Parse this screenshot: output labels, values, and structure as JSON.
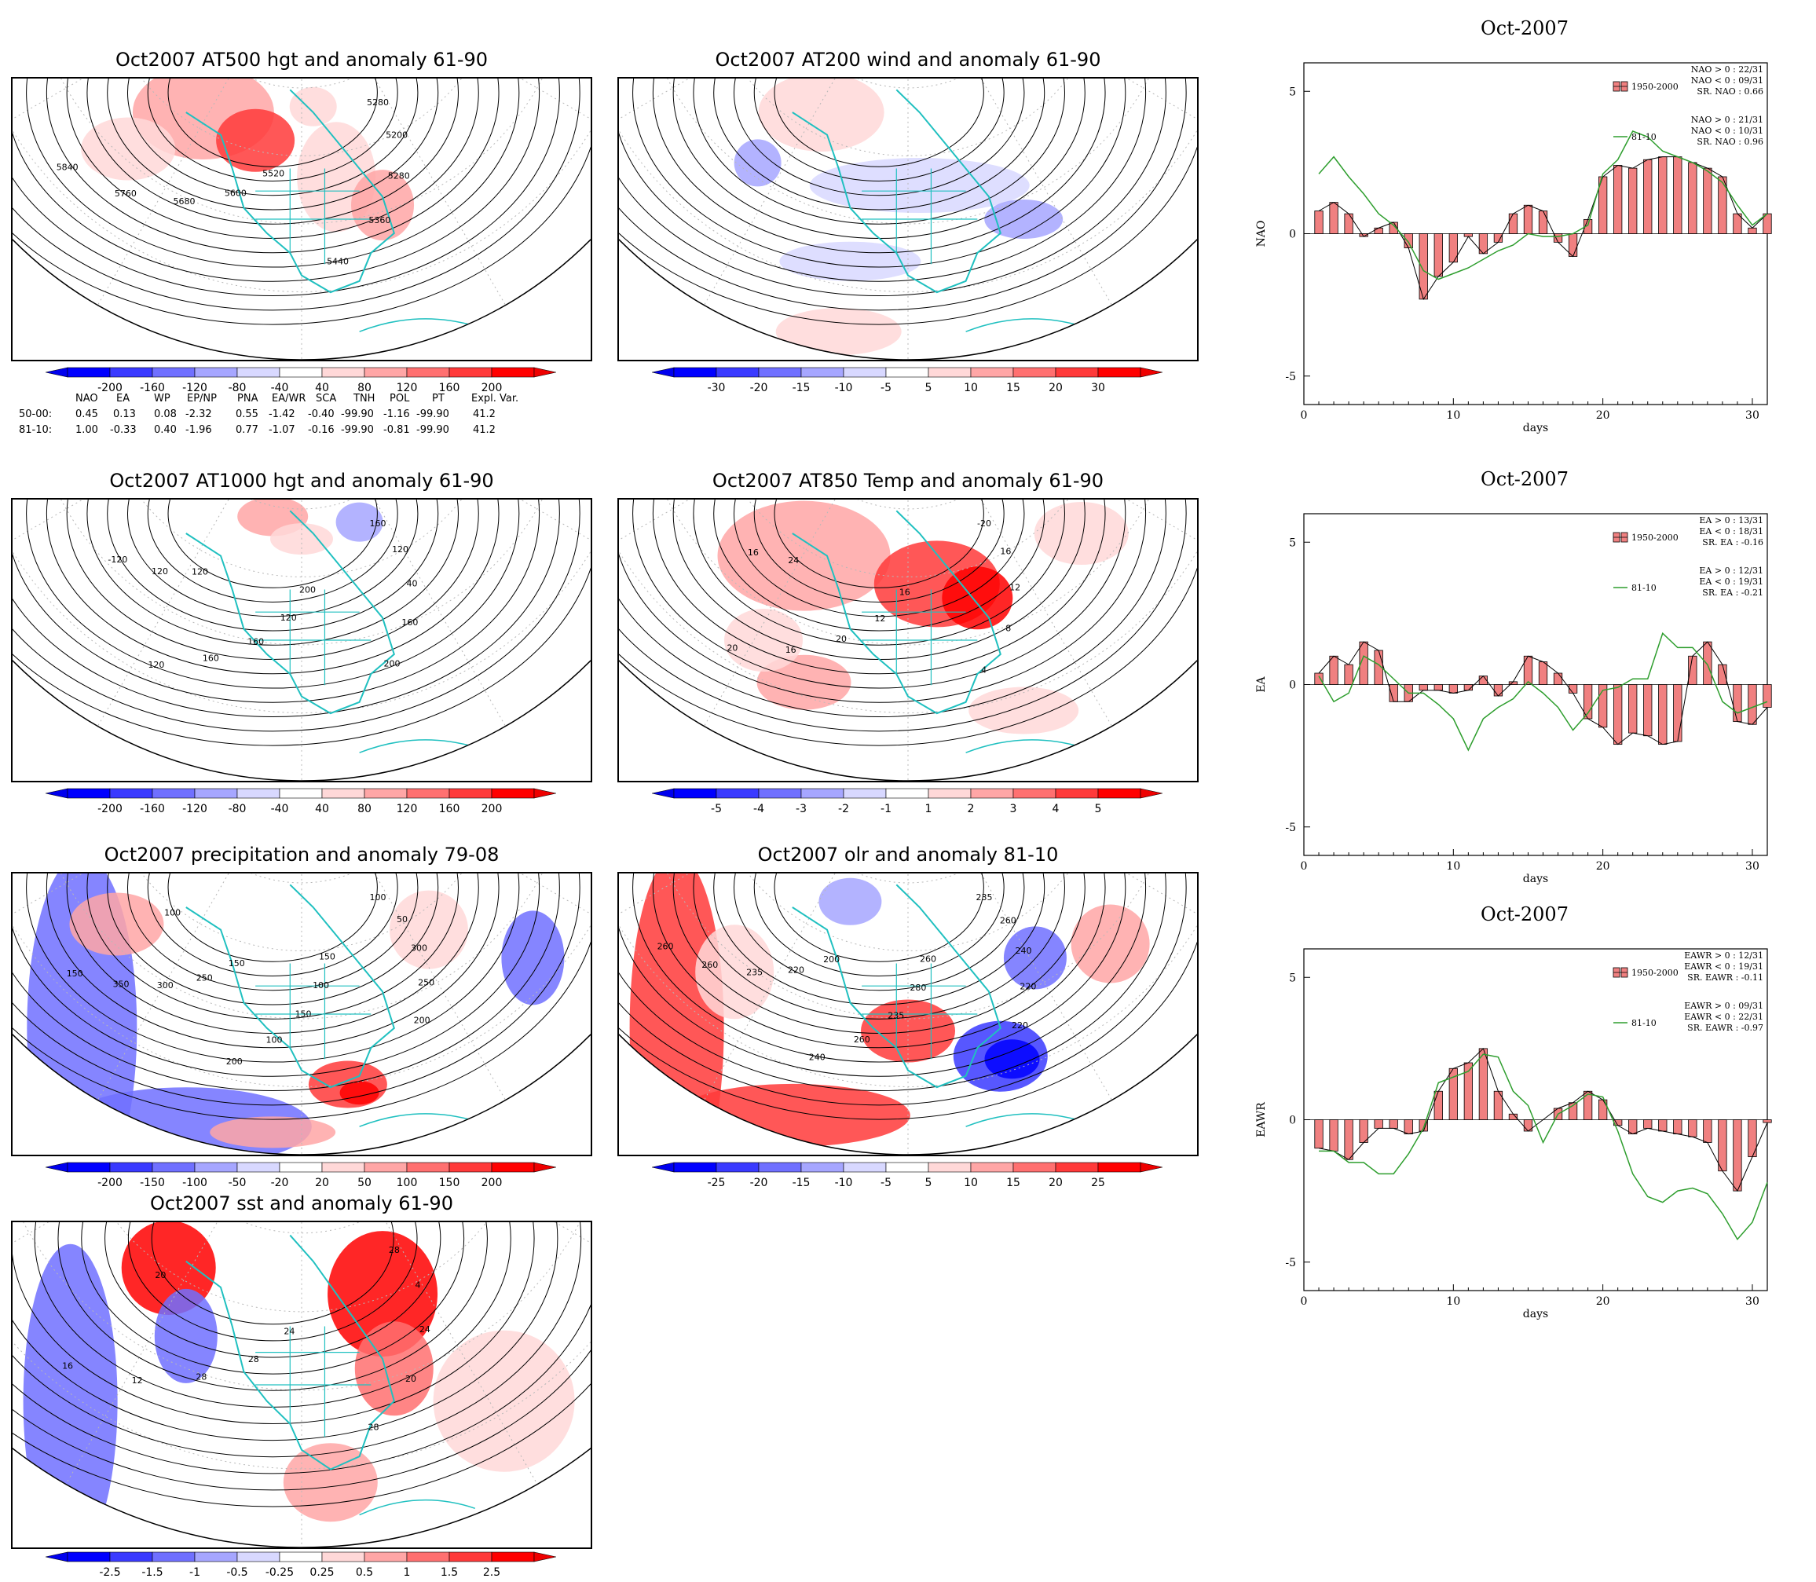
{
  "maps": [
    {
      "id": "at500",
      "title": "Oct2007 AT500 hgt and anomaly 61-90",
      "contour_labels": [
        "5280",
        "5200",
        "5280",
        "5360",
        "5440",
        "5520",
        "5600",
        "5680",
        "5760",
        "5840"
      ],
      "colorbar": {
        "ticks": [
          "-200",
          "-160",
          "-120",
          "-80",
          "-40",
          "40",
          "80",
          "120",
          "160",
          "200"
        ]
      }
    },
    {
      "id": "at200",
      "title": "Oct2007 AT200 wind and anomaly 61-90",
      "contour_labels": [],
      "colorbar": {
        "ticks": [
          "-30",
          "-20",
          "-15",
          "-10",
          "-5",
          "5",
          "10",
          "15",
          "20",
          "30"
        ]
      }
    },
    {
      "id": "at1000",
      "title": "Oct2007 AT1000 hgt and anomaly 61-90",
      "contour_labels": [
        "160",
        "120",
        "40",
        "160",
        "200",
        "200",
        "120",
        "160",
        "160",
        "120",
        "120",
        "120",
        "-120"
      ],
      "colorbar": {
        "ticks": [
          "-200",
          "-160",
          "-120",
          "-80",
          "-40",
          "40",
          "80",
          "120",
          "160",
          "200"
        ]
      }
    },
    {
      "id": "at850",
      "title": "Oct2007 AT850 Temp and anomaly 61-90",
      "contour_labels": [
        "-20",
        "16",
        "12",
        "8",
        "4",
        "16",
        "12",
        "20",
        "16",
        "20",
        "24",
        "16"
      ],
      "colorbar": {
        "ticks": [
          "-5",
          "-4",
          "-3",
          "-2",
          "-1",
          "1",
          "2",
          "3",
          "4",
          "5"
        ]
      }
    },
    {
      "id": "precip",
      "title": "Oct2007 precipitation and anomaly 79-08",
      "contour_labels": [
        "100",
        "50",
        "300",
        "250",
        "200",
        "150",
        "100",
        "150",
        "100",
        "200",
        "150",
        "250",
        "300",
        "350",
        "150",
        "100"
      ],
      "colorbar": {
        "ticks": [
          "-200",
          "-150",
          "-100",
          "-50",
          "-20",
          "20",
          "50",
          "100",
          "150",
          "200"
        ]
      }
    },
    {
      "id": "olr",
      "title": "Oct2007 olr and anomaly 81-10",
      "contour_labels": [
        "235",
        "260",
        "240",
        "220",
        "220",
        "260",
        "280",
        "235",
        "260",
        "240",
        "200",
        "220",
        "235",
        "260",
        "260"
      ],
      "colorbar": {
        "ticks": [
          "-25",
          "-20",
          "-15",
          "-10",
          "-5",
          "5",
          "10",
          "15",
          "20",
          "25"
        ]
      }
    },
    {
      "id": "sst",
      "title": "Oct2007 sst and anomaly 61-90",
      "contour_labels": [
        "28",
        "4",
        "24",
        "20",
        "28",
        "24",
        "28",
        "28",
        "12",
        "16",
        "20"
      ],
      "colorbar": {
        "ticks": [
          "-2.5",
          "-1.5",
          "-1",
          "-0.5",
          "-0.25",
          "0.25",
          "0.5",
          "1",
          "1.5",
          "2.5"
        ]
      }
    }
  ],
  "teleconnection_table": {
    "headers": [
      "NAO",
      "EA",
      "WP",
      "EP/NP",
      "PNA",
      "EA/WR",
      "SCA",
      "TNH",
      "POL",
      "PT",
      "Expl. Var."
    ],
    "rows": [
      {
        "label": "50-00:",
        "values": [
          "0.45",
          "0.13",
          "0.08",
          "-2.32",
          "0.55",
          "-1.42",
          "-0.40",
          "-99.90",
          "-1.16",
          "-99.90",
          "41.2"
        ]
      },
      {
        "label": "81-10:",
        "values": [
          "1.00",
          "-0.33",
          "0.40",
          "-1.96",
          "0.77",
          "-1.07",
          "-0.16",
          "-99.90",
          "-0.81",
          "-99.90",
          "41.2"
        ]
      }
    ]
  },
  "colors": {
    "blue_scale": [
      "#0000ff",
      "#3a3aff",
      "#7070ff",
      "#a6a6ff",
      "#d8d8ff"
    ],
    "red_scale": [
      "#ffd8d8",
      "#ffa6a6",
      "#ff7070",
      "#ff3a3a",
      "#ff0000"
    ],
    "coast": "#20c0c0",
    "bar_fill": "#f08080",
    "line_green": "#2e9e2e"
  },
  "chart_data": [
    {
      "type": "bar",
      "title": "Oct-2007",
      "ylabel": "NAO",
      "xlabel": "days",
      "xlim": [
        0,
        31
      ],
      "ylim": [
        -6,
        6
      ],
      "xticks": [
        "0",
        "10",
        "20",
        "30"
      ],
      "yticks": [
        "5",
        "0",
        "-5"
      ],
      "x": [
        1,
        2,
        3,
        4,
        5,
        6,
        7,
        8,
        9,
        10,
        11,
        12,
        13,
        14,
        15,
        16,
        17,
        18,
        19,
        20,
        21,
        22,
        23,
        24,
        25,
        26,
        27,
        28,
        29,
        30,
        31
      ],
      "series": [
        {
          "name": "1950-2000",
          "kind": "bar",
          "values": [
            0.8,
            1.1,
            0.7,
            -0.1,
            0.2,
            0.4,
            -0.5,
            -2.3,
            -1.5,
            -1.0,
            -0.1,
            -0.7,
            -0.3,
            0.7,
            1.0,
            0.8,
            -0.3,
            -0.8,
            0.5,
            2.0,
            2.4,
            2.3,
            2.6,
            2.7,
            2.7,
            2.5,
            2.3,
            2.0,
            0.7,
            0.2,
            0.7
          ]
        },
        {
          "name": "81-10",
          "kind": "line",
          "values": [
            2.1,
            2.7,
            2.0,
            1.4,
            0.7,
            0.3,
            -0.3,
            -1.3,
            -1.6,
            -1.4,
            -1.2,
            -0.9,
            -0.6,
            -0.4,
            0.0,
            -0.1,
            -0.1,
            0.0,
            0.3,
            2.1,
            2.6,
            3.6,
            3.4,
            2.9,
            2.7,
            2.5,
            2.2,
            1.8,
            1.0,
            0.3,
            0.7
          ]
        }
      ],
      "legend": [
        "NAO > 0 : 22/31",
        "NAO < 0 : 09/31",
        "SR. NAO :  0.66",
        "NAO > 0 : 21/31",
        "NAO < 0 : 10/31",
        "SR. NAO :  0.96"
      ]
    },
    {
      "type": "bar",
      "title": "Oct-2007",
      "ylabel": "EA",
      "xlabel": "days",
      "xlim": [
        0,
        31
      ],
      "ylim": [
        -6,
        6
      ],
      "xticks": [
        "0",
        "10",
        "20",
        "30"
      ],
      "yticks": [
        "5",
        "0",
        "-5"
      ],
      "x": [
        1,
        2,
        3,
        4,
        5,
        6,
        7,
        8,
        9,
        10,
        11,
        12,
        13,
        14,
        15,
        16,
        17,
        18,
        19,
        20,
        21,
        22,
        23,
        24,
        25,
        26,
        27,
        28,
        29,
        30,
        31
      ],
      "series": [
        {
          "name": "1950-2000",
          "kind": "bar",
          "values": [
            0.4,
            1.0,
            0.7,
            1.5,
            1.2,
            -0.6,
            -0.6,
            -0.2,
            -0.2,
            -0.3,
            -0.2,
            0.3,
            -0.4,
            0.1,
            1.0,
            0.8,
            0.4,
            -0.3,
            -1.2,
            -1.5,
            -2.1,
            -1.7,
            -1.8,
            -2.1,
            -2.0,
            1.0,
            1.5,
            0.7,
            -1.3,
            -1.4,
            -0.8
          ]
        },
        {
          "name": "81-10",
          "kind": "line",
          "values": [
            0.3,
            -0.6,
            -0.3,
            1.0,
            0.7,
            0.2,
            -0.3,
            -0.3,
            -0.7,
            -1.2,
            -2.3,
            -1.2,
            -0.8,
            -0.5,
            0.1,
            -0.3,
            -0.8,
            -1.6,
            -1.0,
            -0.2,
            -0.1,
            0.2,
            0.2,
            1.8,
            1.3,
            1.3,
            0.7,
            -0.6,
            -1.0,
            -0.8,
            -0.6
          ]
        }
      ],
      "legend": [
        "EA > 0 : 13/31",
        "EA < 0 : 18/31",
        "SR. EA : -0.16",
        "EA > 0 : 12/31",
        "EA < 0 : 19/31",
        "SR. EA : -0.21"
      ]
    },
    {
      "type": "bar",
      "title": "Oct-2007",
      "ylabel": "EAWR",
      "xlabel": "days",
      "xlim": [
        0,
        31
      ],
      "ylim": [
        -6,
        6
      ],
      "xticks": [
        "0",
        "10",
        "20",
        "30"
      ],
      "yticks": [
        "5",
        "0",
        "-5"
      ],
      "x": [
        1,
        2,
        3,
        4,
        5,
        6,
        7,
        8,
        9,
        10,
        11,
        12,
        13,
        14,
        15,
        16,
        17,
        18,
        19,
        20,
        21,
        22,
        23,
        24,
        25,
        26,
        27,
        28,
        29,
        30,
        31
      ],
      "series": [
        {
          "name": "1950-2000",
          "kind": "bar",
          "values": [
            -1.0,
            -1.1,
            -1.4,
            -0.8,
            -0.3,
            -0.3,
            -0.5,
            -0.4,
            1.0,
            1.8,
            2.0,
            2.5,
            1.0,
            0.2,
            -0.4,
            0.0,
            0.4,
            0.6,
            1.0,
            0.7,
            -0.2,
            -0.5,
            -0.3,
            -0.4,
            -0.5,
            -0.6,
            -0.8,
            -1.8,
            -2.5,
            -1.3,
            -0.1
          ]
        },
        {
          "name": "81-10",
          "kind": "line",
          "values": [
            -1.1,
            -1.1,
            -1.5,
            -1.5,
            -1.9,
            -1.9,
            -1.2,
            -0.3,
            1.3,
            1.5,
            1.7,
            2.3,
            2.2,
            1.0,
            0.5,
            -0.8,
            0.2,
            0.5,
            0.9,
            0.8,
            -0.4,
            -1.9,
            -2.7,
            -2.9,
            -2.5,
            -2.4,
            -2.6,
            -3.3,
            -4.2,
            -3.6,
            -2.2
          ]
        }
      ],
      "legend": [
        "EAWR > 0 : 12/31",
        "EAWR < 0 : 19/31",
        "SR. EAWR : -0.11",
        "EAWR > 0 : 09/31",
        "EAWR < 0 : 22/31",
        "SR. EAWR : -0.97"
      ]
    }
  ]
}
